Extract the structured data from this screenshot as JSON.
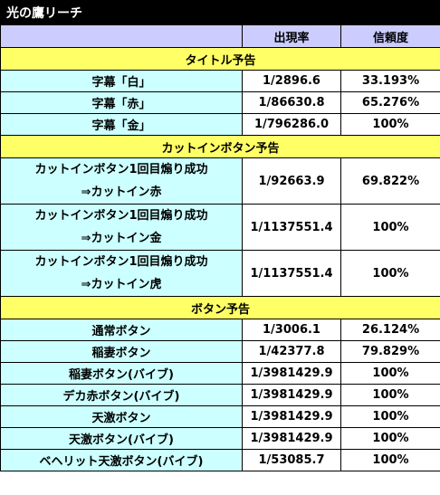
{
  "title": "光の鷹リーチ",
  "header": {
    "blank": "",
    "col1": "出現率",
    "col2": "信頼度"
  },
  "sections": [
    {
      "name": "タイトル予告",
      "rows": [
        {
          "label": "字幕「白」",
          "rate": "1/2896.6",
          "trust": "33.193%"
        },
        {
          "label": "字幕「赤」",
          "rate": "1/86630.8",
          "trust": "65.276%"
        },
        {
          "label": "字幕「金」",
          "rate": "1/796286.0",
          "trust": "100%"
        }
      ]
    },
    {
      "name": "カットインボタン予告",
      "rows": [
        {
          "label_line1": "カットインボタン1回目煽り成功",
          "label_line2": "⇒カットイン赤",
          "rate": "1/92663.9",
          "trust": "69.822%"
        },
        {
          "label_line1": "カットインボタン1回目煽り成功",
          "label_line2": "⇒カットイン金",
          "rate": "1/1137551.4",
          "trust": "100%"
        },
        {
          "label_line1": "カットインボタン1回目煽り成功",
          "label_line2": "⇒カットイン虎",
          "rate": "1/1137551.4",
          "trust": "100%"
        }
      ]
    },
    {
      "name": "ボタン予告",
      "rows": [
        {
          "label": "通常ボタン",
          "rate": "1/3006.1",
          "trust": "26.124%"
        },
        {
          "label": "稲妻ボタン",
          "rate": "1/42377.8",
          "trust": "79.829%"
        },
        {
          "label": "稲妻ボタン(バイブ)",
          "rate": "1/3981429.9",
          "trust": "100%"
        },
        {
          "label": "デカ赤ボタン(バイブ)",
          "rate": "1/3981429.9",
          "trust": "100%"
        },
        {
          "label": "天激ボタン",
          "rate": "1/3981429.9",
          "trust": "100%"
        },
        {
          "label": "天激ボタン(バイブ)",
          "rate": "1/3981429.9",
          "trust": "100%"
        },
        {
          "label": "ベヘリット天激ボタン(バイブ)",
          "rate": "1/53085.7",
          "trust": "100%"
        }
      ]
    }
  ]
}
